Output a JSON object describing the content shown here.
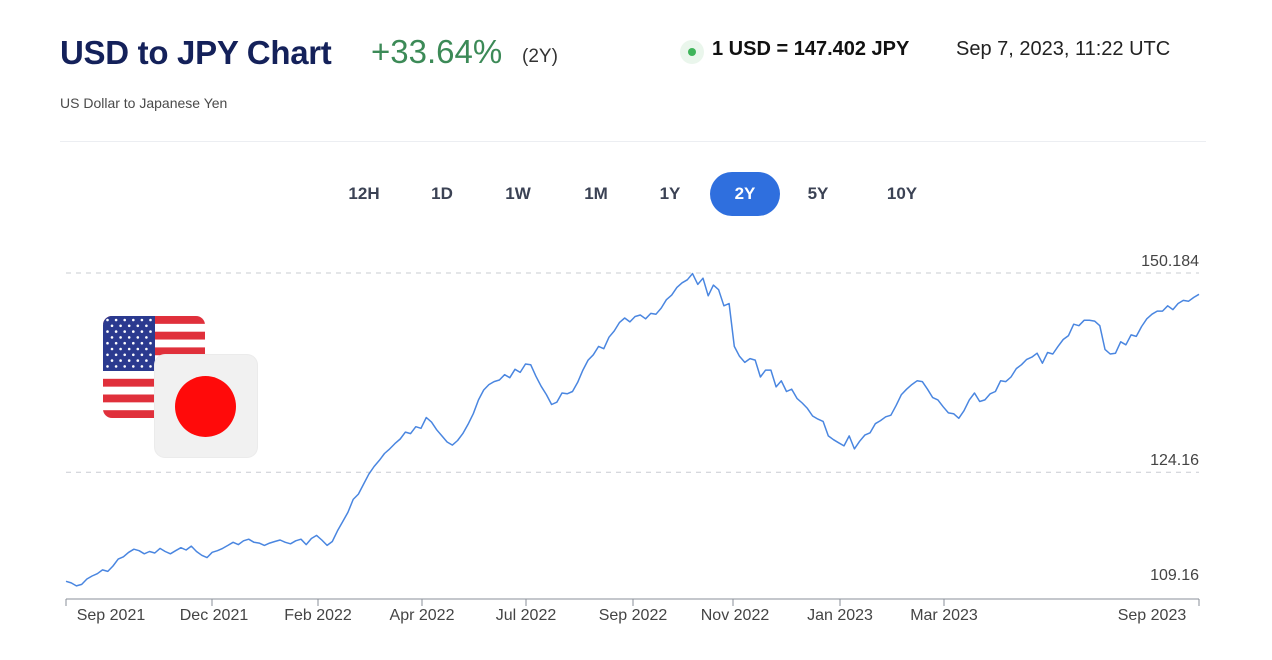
{
  "header": {
    "title": "USD to JPY Chart",
    "change": "+33.64%",
    "period": "(2Y)",
    "subtitle": "US Dollar to Japanese Yen",
    "rate": "1 USD = 147.402 JPY",
    "timestamp": "Sep 7, 2023, 11:22 UTC"
  },
  "ranges": [
    {
      "label": "12H",
      "active": false
    },
    {
      "label": "1D",
      "active": false
    },
    {
      "label": "1W",
      "active": false
    },
    {
      "label": "1M",
      "active": false
    },
    {
      "label": "1Y",
      "active": false
    },
    {
      "label": "2Y",
      "active": true
    },
    {
      "label": "5Y",
      "active": false
    },
    {
      "label": "10Y",
      "active": false
    }
  ],
  "flags": {
    "base": "us-flag-icon",
    "quote": "jp-flag-icon"
  },
  "colors": {
    "line": "#4a86e0",
    "accent": "#2f6fde",
    "positive": "#3c8a57",
    "title": "#14215a"
  },
  "chart_data": {
    "type": "line",
    "title": "",
    "xlabel": "",
    "ylabel": "",
    "ylim": [
      109.16,
      150.184
    ],
    "grid": true,
    "y_ticks": [
      150.184,
      124.16,
      109.16
    ],
    "x_ticks": [
      "Sep 2021",
      "Dec 2021",
      "Feb 2022",
      "Apr 2022",
      "Jul 2022",
      "Sep 2022",
      "Nov 2022",
      "Jan 2023",
      "Mar 2023",
      "Sep 2023"
    ],
    "series": [
      {
        "values": [
          109.9,
          109.7,
          109.3,
          109.5,
          110.2,
          110.6,
          110.9,
          111.4,
          111.2,
          111.9,
          112.8,
          113.1,
          113.7,
          114.1,
          113.9,
          113.5,
          113.8,
          113.6,
          114.2,
          113.8,
          113.5,
          113.9,
          114.3,
          114.0,
          114.5,
          113.8,
          113.3,
          113.0,
          113.7,
          113.9,
          114.2,
          114.6,
          115.0,
          114.7,
          115.2,
          115.4,
          115.0,
          114.9,
          114.6,
          114.9,
          115.1,
          115.3,
          115.0,
          114.8,
          115.2,
          115.4,
          114.7,
          115.5,
          115.9,
          115.3,
          114.6,
          115.1,
          116.5,
          117.7,
          118.9,
          120.6,
          121.3,
          122.6,
          123.9,
          124.9,
          125.7,
          126.6,
          127.2,
          127.9,
          128.5,
          129.4,
          129.2,
          130.1,
          129.9,
          131.3,
          130.7,
          129.7,
          128.9,
          128.1,
          127.7,
          128.3,
          129.2,
          130.4,
          131.8,
          133.6,
          134.9,
          135.6,
          136.0,
          136.2,
          136.9,
          136.5,
          137.6,
          137.2,
          138.3,
          138.2,
          136.7,
          135.4,
          134.3,
          133.0,
          133.3,
          134.5,
          134.4,
          134.7,
          135.9,
          137.5,
          138.8,
          139.5,
          140.6,
          140.3,
          141.8,
          142.6,
          143.7,
          144.3,
          143.8,
          144.5,
          144.7,
          144.2,
          144.9,
          144.8,
          145.6,
          146.7,
          147.3,
          148.3,
          148.9,
          149.3,
          150.1,
          148.7,
          149.5,
          147.2,
          148.6,
          148.0,
          145.9,
          146.2,
          140.6,
          139.3,
          138.5,
          139.0,
          138.8,
          136.6,
          137.5,
          137.5,
          135.3,
          136.1,
          134.7,
          135.0,
          133.8,
          133.2,
          132.5,
          131.5,
          131.1,
          130.8,
          128.9,
          128.4,
          128.0,
          127.6,
          128.9,
          127.2,
          128.2,
          129.0,
          129.3,
          130.5,
          130.9,
          131.4,
          131.6,
          132.9,
          134.3,
          135.0,
          135.6,
          136.1,
          136.0,
          135.0,
          133.9,
          133.6,
          132.7,
          131.9,
          131.8,
          131.2,
          132.2,
          133.6,
          134.5,
          133.4,
          133.6,
          134.4,
          134.7,
          136.1,
          136.0,
          136.6,
          137.7,
          138.2,
          138.9,
          139.2,
          139.7,
          138.4,
          139.8,
          139.6,
          140.6,
          141.5,
          142.0,
          143.5,
          143.3,
          144.0,
          144.0,
          143.9,
          143.3,
          140.2,
          139.6,
          139.7,
          141.2,
          140.8,
          142.1,
          141.9,
          143.2,
          144.2,
          144.8,
          145.2,
          145.2,
          145.9,
          145.4,
          146.2,
          146.6,
          146.5,
          147.0,
          147.4
        ]
      }
    ]
  }
}
